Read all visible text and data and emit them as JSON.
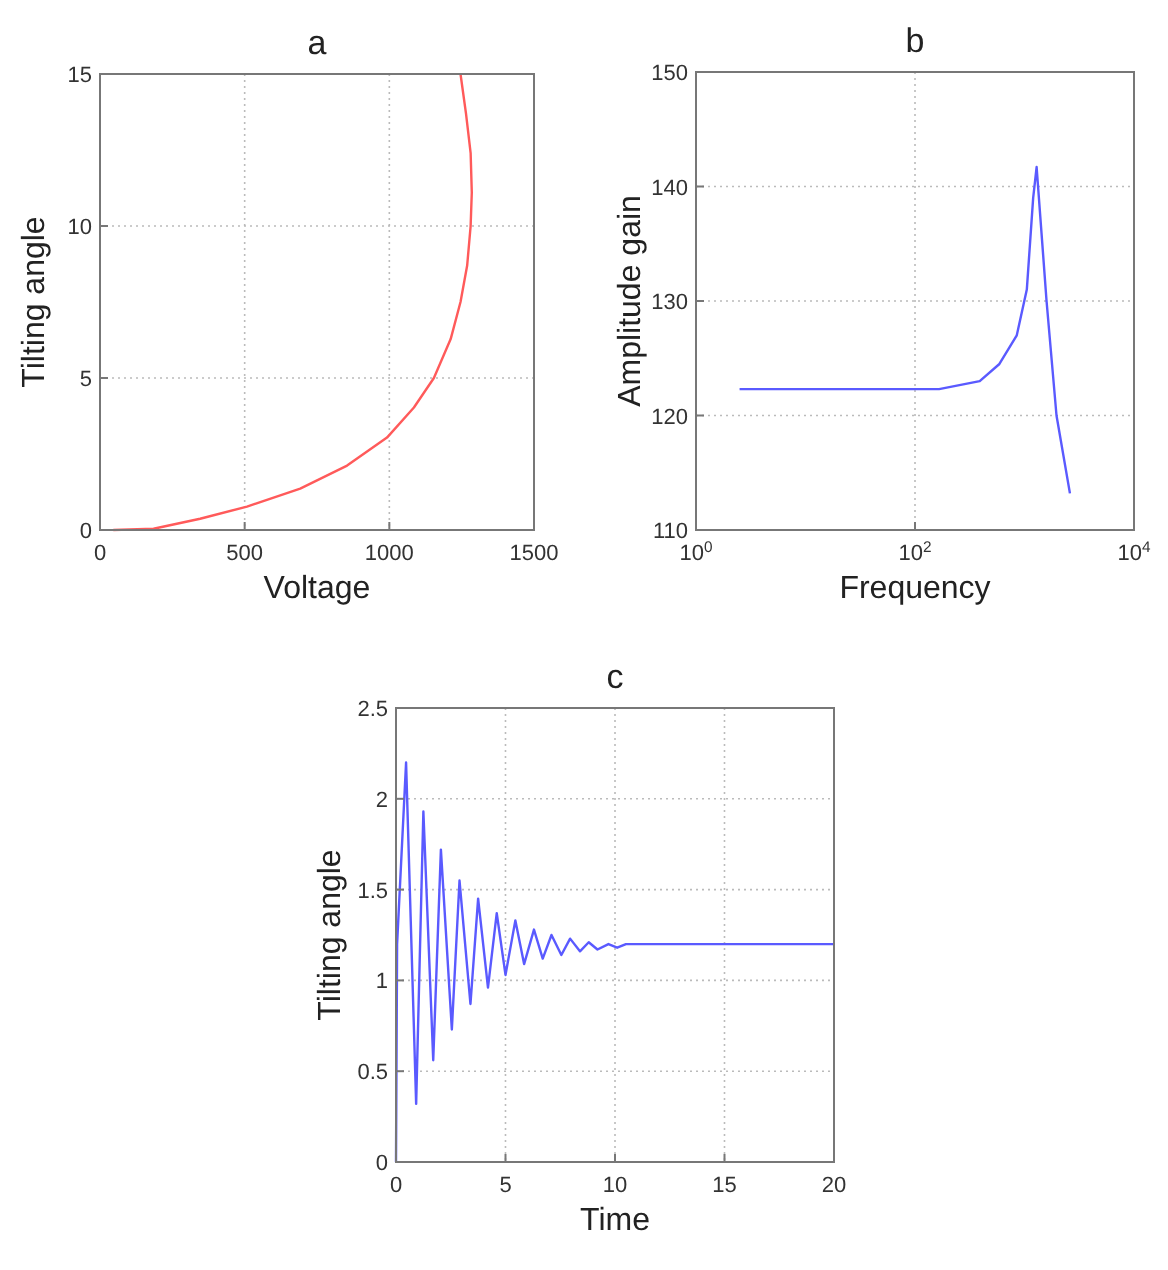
{
  "chart_data": [
    {
      "type": "line",
      "title": "a",
      "xlabel": "Voltage",
      "ylabel": "Tilting angle",
      "xlim": [
        0,
        1500
      ],
      "ylim": [
        0,
        15
      ],
      "xticks": [
        0,
        500,
        1000,
        1500
      ],
      "yticks": [
        0,
        5,
        10,
        15
      ],
      "grid": true,
      "series": [
        {
          "color": "#ff5a5a",
          "x": [
            46,
            185,
            346,
            508,
            692,
            854,
            992,
            1085,
            1154,
            1212,
            1246,
            1269,
            1281,
            1285,
            1281,
            1265,
            1246
          ],
          "values": [
            0,
            0.04,
            0.37,
            0.77,
            1.36,
            2.12,
            3.04,
            4.03,
            5.0,
            6.28,
            7.5,
            8.7,
            10.0,
            11.1,
            12.4,
            13.7,
            15
          ]
        }
      ]
    },
    {
      "type": "line",
      "title": "b",
      "xlabel": "Frequency",
      "ylabel": "Amplitude gain",
      "log": "x",
      "xlim": [
        1,
        10000
      ],
      "ylim": [
        110,
        150
      ],
      "xticks": [
        {
          "value": 1,
          "label": "10$^{0}$"
        },
        {
          "value": 100,
          "label": "10$^{2}$"
        },
        {
          "value": 10000,
          "label": "10$^{4}$"
        }
      ],
      "yticks": [
        110,
        120,
        130,
        140,
        150
      ],
      "grid": true,
      "series": [
        {
          "color": "#5a5aff",
          "x": [
            2.5,
            20,
            166,
            390,
            590,
            850,
            1050,
            1200,
            1290,
            1590,
            1960,
            2600
          ],
          "values": [
            122.3,
            122.3,
            122.3,
            123,
            124.5,
            127,
            131,
            139,
            141.7,
            130,
            120,
            113.2
          ]
        }
      ]
    },
    {
      "type": "line",
      "title": "c",
      "xlabel": "Time",
      "ylabel": "Tilting angle",
      "xlim": [
        0,
        20
      ],
      "ylim": [
        0,
        2.5
      ],
      "xticks": [
        0,
        5,
        10,
        15,
        20
      ],
      "yticks": [
        0,
        0.5,
        1,
        1.5,
        2,
        2.5
      ],
      "grid": true,
      "series": [
        {
          "color": "#5a5aff",
          "x": [
            0,
            0.05,
            0.46,
            0.92,
            1.25,
            1.7,
            2.05,
            2.55,
            2.9,
            3.4,
            3.75,
            4.2,
            4.6,
            5.0,
            5.45,
            5.85,
            6.3,
            6.7,
            7.1,
            7.55,
            7.95,
            8.4,
            8.8,
            9.2,
            9.7,
            10.1,
            10.5,
            20
          ],
          "values": [
            0,
            1.2,
            2.2,
            0.32,
            1.93,
            0.56,
            1.72,
            0.73,
            1.55,
            0.87,
            1.45,
            0.96,
            1.37,
            1.03,
            1.33,
            1.09,
            1.28,
            1.12,
            1.25,
            1.14,
            1.23,
            1.16,
            1.21,
            1.17,
            1.2,
            1.18,
            1.2,
            1.2
          ]
        }
      ]
    }
  ]
}
